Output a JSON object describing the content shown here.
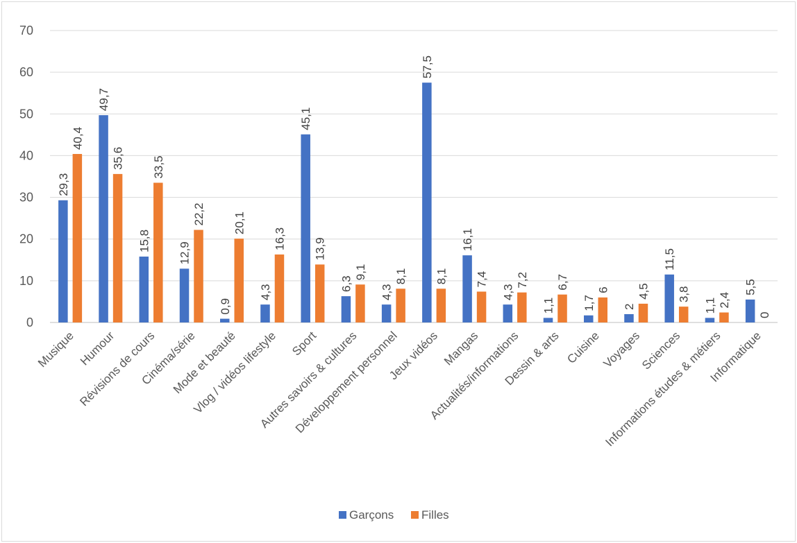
{
  "chart_data": {
    "type": "bar",
    "title": "",
    "xlabel": "",
    "ylabel": "",
    "ylim": [
      0,
      70
    ],
    "yticks": [
      0,
      10,
      20,
      30,
      40,
      50,
      60,
      70
    ],
    "grid": true,
    "legend_position": "bottom",
    "categories": [
      "Musique",
      "Humour",
      "Révisions de cours",
      "Cinéma/série",
      "Mode et beauté",
      "Vlog / vidéos lifestyle",
      "Sport",
      "Autres savoirs & cultures",
      "Développement personnel",
      "Jeux vidéos",
      "Mangas",
      "Actualités/informations",
      "Dessin & arts",
      "Cuisine",
      "Voyages",
      "Sciences",
      "Informations études & métiers",
      "Informatique"
    ],
    "series": [
      {
        "name": "Garçons",
        "color": "#4472c4",
        "values": [
          29.3,
          49.7,
          15.8,
          12.9,
          0.9,
          4.3,
          45.1,
          6.3,
          4.3,
          57.5,
          16.1,
          4.3,
          1.1,
          1.7,
          2,
          11.5,
          1.1,
          5.5
        ],
        "labels": [
          "29,3",
          "49,7",
          "15,8",
          "12,9",
          "0,9",
          "4,3",
          "45,1",
          "6,3",
          "4,3",
          "57,5",
          "16,1",
          "4,3",
          "1,1",
          "1,7",
          "2",
          "11,5",
          "1,1",
          "5,5"
        ]
      },
      {
        "name": "Filles",
        "color": "#ed7d31",
        "values": [
          40.4,
          35.6,
          33.5,
          22.2,
          20.1,
          16.3,
          13.9,
          9.1,
          8.1,
          8.1,
          7.4,
          7.2,
          6.7,
          6,
          4.5,
          3.8,
          2.4,
          0
        ],
        "labels": [
          "40,4",
          "35,6",
          "33,5",
          "22,2",
          "20,1",
          "16,3",
          "13,9",
          "9,1",
          "8,1",
          "8,1",
          "7,4",
          "7,2",
          "6,7",
          "6",
          "4,5",
          "3,8",
          "2,4",
          "0"
        ]
      }
    ]
  },
  "colors": {
    "grid": "#d9d9d9",
    "axis": "#bfbfbf",
    "text": "#595959"
  }
}
